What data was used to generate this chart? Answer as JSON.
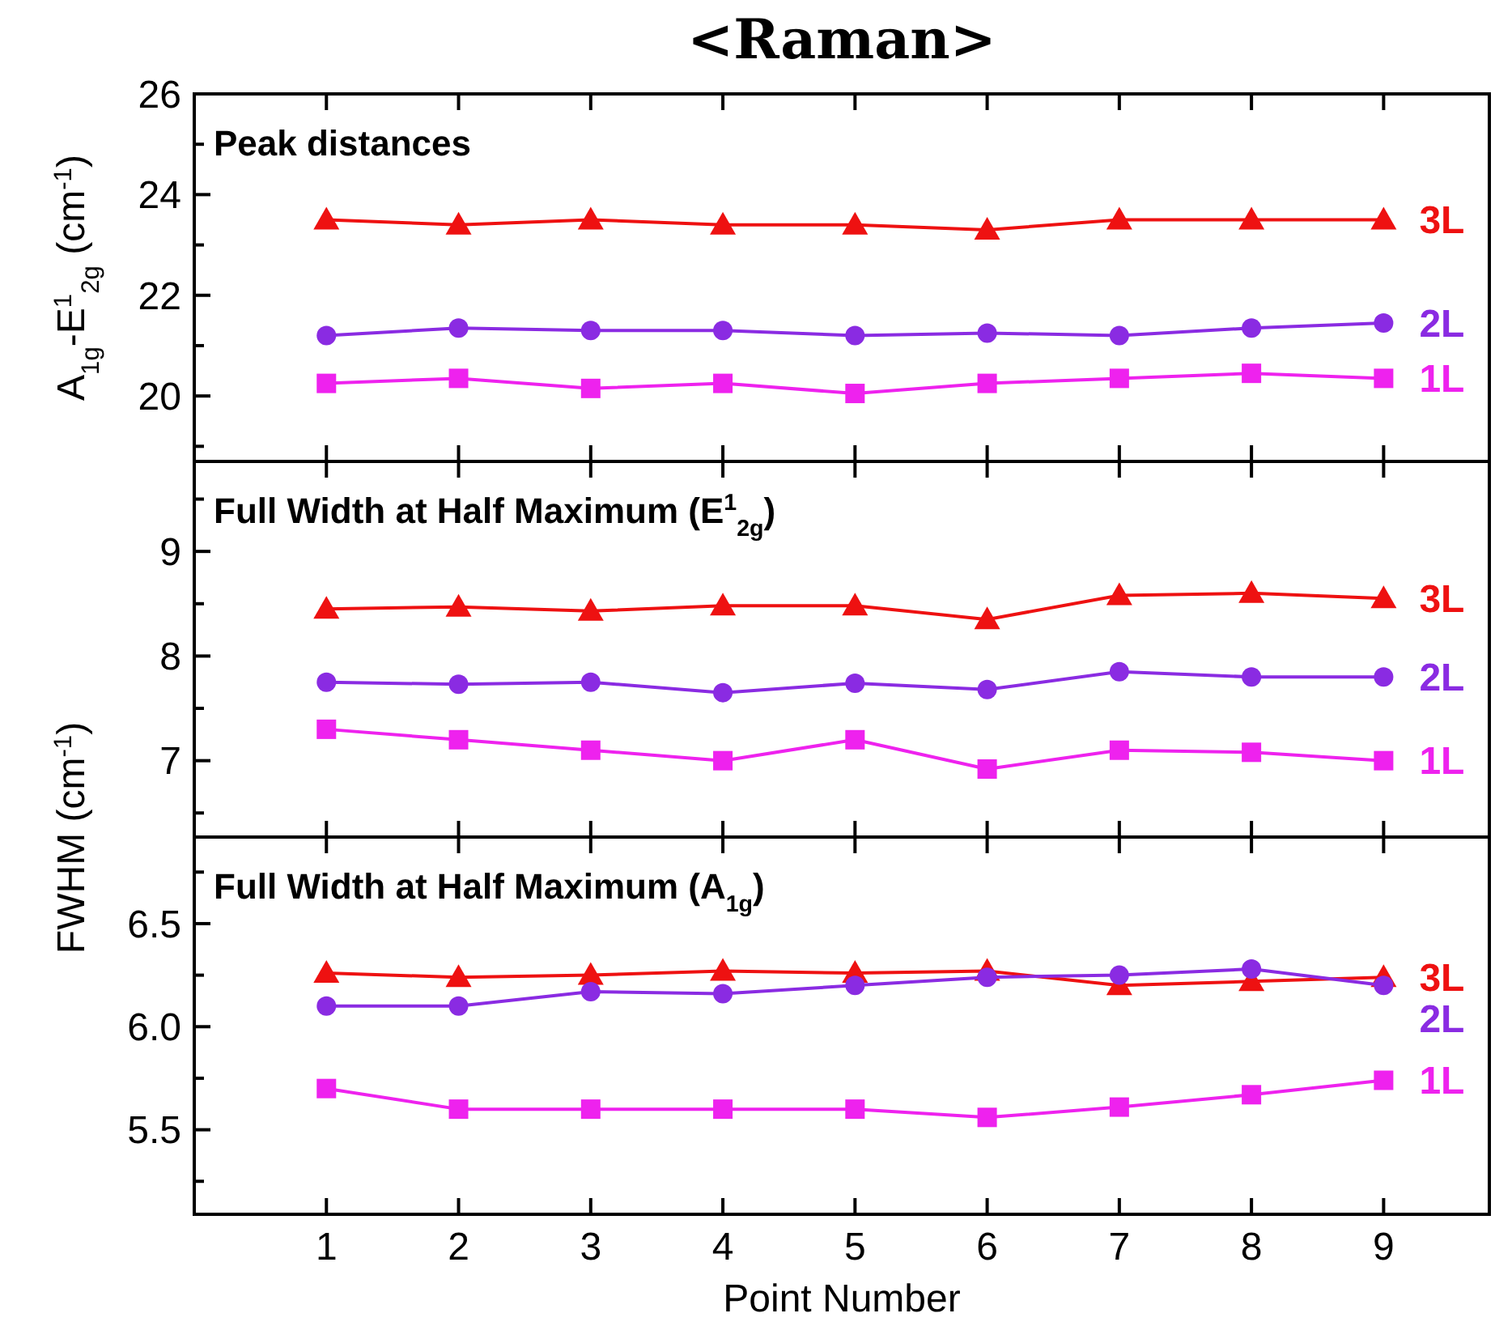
{
  "chart_data": [
    {
      "type": "line",
      "title": "<Raman>",
      "ylabel": "A$_{1g}$-E$^{1}$$_{2g}$ (cm$^{-1}$)",
      "annotations": [
        "Peak distances"
      ],
      "x": [
        1,
        2,
        3,
        4,
        5,
        6,
        7,
        8,
        9
      ],
      "xlim": [
        0,
        9.8
      ],
      "xticks": [
        1,
        2,
        3,
        4,
        5,
        6,
        7,
        8,
        9
      ],
      "ylim": [
        18.7,
        26
      ],
      "yticks": [
        {
          "value": 19,
          "label": null
        },
        20,
        {
          "value": 21,
          "label": null
        },
        22,
        {
          "value": 23,
          "label": null
        },
        24,
        {
          "value": 25,
          "label": null
        },
        26
      ],
      "tick_labels": "y",
      "grid": false,
      "series": [
        {
          "name": "3L",
          "color": "#ee1111",
          "marker": "triangle",
          "values": [
            23.5,
            23.4,
            23.5,
            23.4,
            23.4,
            23.3,
            23.5,
            23.5,
            23.5
          ]
        },
        {
          "name": "2L",
          "color": "#8a2be2",
          "marker": "circle",
          "values": [
            21.2,
            21.35,
            21.3,
            21.3,
            21.2,
            21.25,
            21.2,
            21.35,
            21.45
          ]
        },
        {
          "name": "1L",
          "color": "#ee22ee",
          "marker": "square",
          "values": [
            20.25,
            20.35,
            20.15,
            20.25,
            20.05,
            20.25,
            20.35,
            20.45,
            20.35
          ]
        }
      ]
    },
    {
      "type": "line",
      "ylabel": "FWHM (cm$^{-1}$)",
      "annotations": [
        "Full Width at Half Maximum (E$^{1}$$_{2g}$)"
      ],
      "x": [
        1,
        2,
        3,
        4,
        5,
        6,
        7,
        8,
        9
      ],
      "xlim": [
        0,
        9.8
      ],
      "xticks": [
        1,
        2,
        3,
        4,
        5,
        6,
        7,
        8,
        9
      ],
      "ylim": [
        6.27,
        9.86
      ],
      "yticks": [
        {
          "value": 6.5,
          "label": null
        },
        7,
        {
          "value": 7.5,
          "label": null
        },
        8,
        {
          "value": 8.5,
          "label": null
        },
        9,
        {
          "value": 9.5,
          "label": null
        }
      ],
      "tick_labels": "y",
      "grid": false,
      "series": [
        {
          "name": "3L",
          "color": "#ee1111",
          "marker": "triangle",
          "values": [
            8.45,
            8.47,
            8.43,
            8.48,
            8.48,
            8.35,
            8.58,
            8.6,
            8.55
          ]
        },
        {
          "name": "2L",
          "color": "#8a2be2",
          "marker": "circle",
          "values": [
            7.75,
            7.73,
            7.75,
            7.65,
            7.74,
            7.68,
            7.85,
            7.8,
            7.8
          ]
        },
        {
          "name": "1L",
          "color": "#ee22ee",
          "marker": "square",
          "values": [
            7.3,
            7.2,
            7.1,
            7.0,
            7.2,
            6.92,
            7.1,
            7.08,
            7.0
          ]
        }
      ]
    },
    {
      "type": "line",
      "xlabel": "Point Number",
      "annotations": [
        "Full Width at Half Maximum (A$_{1g}$)"
      ],
      "x": [
        1,
        2,
        3,
        4,
        5,
        6,
        7,
        8,
        9
      ],
      "xlim": [
        0,
        9.8
      ],
      "xticks": [
        1,
        2,
        3,
        4,
        5,
        6,
        7,
        8,
        9
      ],
      "ylim": [
        5.09,
        6.92
      ],
      "yticks": [
        {
          "value": 5.25,
          "label": null
        },
        {
          "value": 5.5,
          "label": "5.5"
        },
        {
          "value": 5.75,
          "label": null
        },
        {
          "value": 6,
          "label": "6.0"
        },
        {
          "value": 6.25,
          "label": null
        },
        {
          "value": 6.5,
          "label": "6.5"
        },
        {
          "value": 6.75,
          "label": null
        }
      ],
      "grid": false,
      "series": [
        {
          "name": "3L",
          "color": "#ee1111",
          "marker": "triangle",
          "values": [
            6.26,
            6.24,
            6.25,
            6.27,
            6.26,
            6.27,
            6.2,
            6.22,
            6.24
          ]
        },
        {
          "name": "2L",
          "color": "#8a2be2",
          "marker": "circle",
          "values": [
            6.1,
            6.1,
            6.17,
            6.16,
            6.2,
            6.24,
            6.25,
            6.28,
            6.2
          ]
        },
        {
          "name": "1L",
          "color": "#ee22ee",
          "marker": "square",
          "values": [
            5.7,
            5.6,
            5.6,
            5.6,
            5.6,
            5.56,
            5.61,
            5.67,
            5.74
          ]
        }
      ]
    }
  ]
}
